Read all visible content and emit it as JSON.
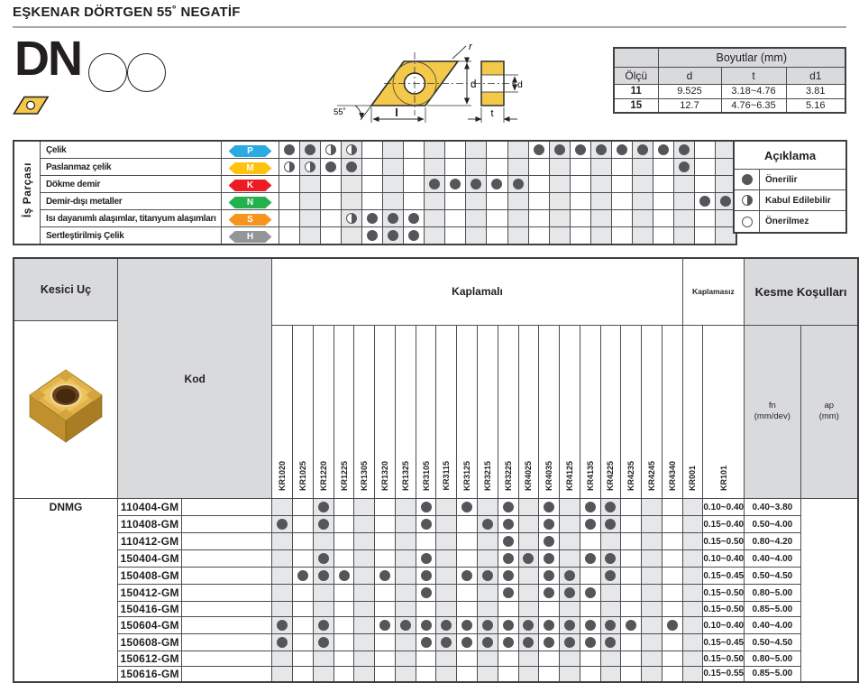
{
  "page": {
    "title": "EŞKENAR DÖRTGEN 55˚ NEGATİF"
  },
  "series": {
    "code": "DN"
  },
  "diagram": {
    "radius_label": "r",
    "diameter_label": "d",
    "length_label": "l",
    "thickness_label": "t",
    "hole_label": "d",
    "angle_label": "55˚"
  },
  "dimensions": {
    "title": "Boyutlar (mm)",
    "columns": [
      "Ölçü",
      "d",
      "t",
      "d1"
    ],
    "rows": [
      [
        "11",
        "9.525",
        "3.18~4.76",
        "3.81"
      ],
      [
        "15",
        "12.7",
        "4.76~6.35",
        "5.16"
      ]
    ]
  },
  "grades": [
    "KR1020",
    "KR1025",
    "KR1220",
    "KR1225",
    "KR1305",
    "KR1320",
    "KR1325",
    "KR3105",
    "KR3115",
    "KR3125",
    "KR3215",
    "KR3225",
    "KR4025",
    "KR4035",
    "KR4125",
    "KR4135",
    "KR4225",
    "KR4235",
    "KR4245",
    "KR4340",
    "KR001",
    "KR101"
  ],
  "workpiece": {
    "label": "İş Parçası",
    "materials": [
      {
        "name": "Çelik",
        "letter": "P",
        "color": "#29ABE2",
        "full": [
          0,
          1,
          12,
          13,
          14,
          15,
          16,
          17,
          18,
          19
        ],
        "half": [
          2,
          3
        ]
      },
      {
        "name": "Paslanmaz çelik",
        "letter": "M",
        "color": "#FFC20E",
        "full": [
          2,
          3,
          19
        ],
        "half": [
          0,
          1
        ]
      },
      {
        "name": "Dökme demir",
        "letter": "K",
        "color": "#ED1C24",
        "full": [
          7,
          8,
          9,
          10,
          11
        ],
        "half": []
      },
      {
        "name": "Demir-dışı metaller",
        "letter": "N",
        "color": "#22B14C",
        "full": [
          20,
          21
        ],
        "half": []
      },
      {
        "name": "Isı dayanımlı alaşımlar, titanyum alaşımları",
        "letter": "S",
        "color": "#F7941D",
        "full": [
          4,
          5,
          6
        ],
        "half": [
          3
        ]
      },
      {
        "name": "Sertleştirilmiş Çelik",
        "letter": "H",
        "color": "#939598",
        "full": [
          4,
          5,
          6
        ],
        "half": []
      }
    ]
  },
  "legend": {
    "title": "Açıklama",
    "items": [
      {
        "mark": "full",
        "label": "Önerilir"
      },
      {
        "mark": "half",
        "label": "Kabul Edilebilir"
      },
      {
        "mark": "empty",
        "label": "Önerilmez"
      }
    ]
  },
  "catalog": {
    "insert_type_header": "Kesici Uç",
    "code_header": "Kod",
    "coated_header": "Kaplamalı",
    "uncoated_header": "Kaplamasız",
    "cutting_header": "Kesme Koşulları",
    "fn_label": "fn",
    "fn_unit": "(mm/dev)",
    "ap_label": "ap",
    "ap_unit": "(mm)",
    "series_prefix": "DNMG",
    "rows": [
      {
        "code": "110404-GM",
        "marks": [
          3,
          8,
          10,
          12,
          14,
          16,
          17
        ],
        "fn": "0.10~0.40",
        "ap": "0.40~3.80"
      },
      {
        "code": "110408-GM",
        "marks": [
          1,
          3,
          8,
          11,
          12,
          14,
          16,
          17
        ],
        "fn": "0.15~0.40",
        "ap": "0.50~4.00"
      },
      {
        "code": "110412-GM",
        "marks": [
          12,
          14
        ],
        "fn": "0.15~0.50",
        "ap": "0.80~4.20"
      },
      {
        "code": "150404-GM",
        "marks": [
          3,
          8,
          12,
          13,
          14,
          16,
          17
        ],
        "fn": "0.10~0.40",
        "ap": "0.40~4.00"
      },
      {
        "code": "150408-GM",
        "marks": [
          2,
          3,
          4,
          6,
          8,
          10,
          11,
          12,
          14,
          15,
          17
        ],
        "fn": "0.15~0.45",
        "ap": "0.50~4.50"
      },
      {
        "code": "150412-GM",
        "marks": [
          8,
          12,
          14,
          15,
          16
        ],
        "fn": "0.15~0.50",
        "ap": "0.80~5.00"
      },
      {
        "code": "150416-GM",
        "marks": [],
        "fn": "0.15~0.50",
        "ap": "0.85~5.00"
      },
      {
        "code": "150604-GM",
        "marks": [
          1,
          3,
          6,
          7,
          8,
          9,
          10,
          11,
          12,
          13,
          14,
          15,
          16,
          17,
          18,
          20
        ],
        "fn": "0.10~0.40",
        "ap": "0.40~4.00"
      },
      {
        "code": "150608-GM",
        "marks": [
          1,
          3,
          8,
          9,
          10,
          11,
          12,
          13,
          14,
          15,
          16,
          17
        ],
        "fn": "0.15~0.45",
        "ap": "0.50~4.50"
      },
      {
        "code": "150612-GM",
        "marks": [],
        "fn": "0.15~0.50",
        "ap": "0.80~5.00"
      },
      {
        "code": "150616-GM",
        "marks": [],
        "fn": "0.15~0.55",
        "ap": "0.85~5.00"
      }
    ]
  }
}
